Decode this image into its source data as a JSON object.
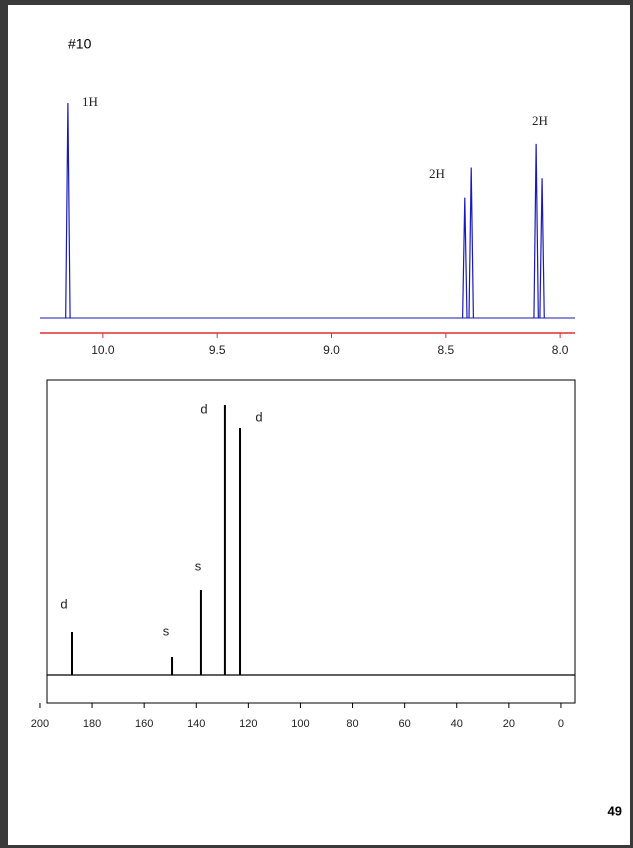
{
  "page": {
    "title": "#10",
    "page_number": "49"
  },
  "chart_data": [
    {
      "type": "spectrum",
      "color": "#1a1ab8",
      "axis_color": "#e03030",
      "x": [
        10.153,
        8.417,
        8.389,
        8.105,
        8.079
      ],
      "values": [
        100,
        56,
        70,
        81,
        65
      ],
      "xlim": [
        10.275,
        7.935
      ],
      "ylim": [
        0,
        100
      ],
      "xticks": [
        {
          "value": 10,
          "label": "10.0"
        },
        {
          "value": 9.5,
          "label": "9.5"
        },
        {
          "value": 9,
          "label": "9.0"
        },
        {
          "value": 8.5,
          "label": "8.5"
        },
        {
          "value": 8,
          "label": "8.0"
        }
      ],
      "annotations": [
        "1H",
        "2H",
        "2H"
      ]
    },
    {
      "type": "sticks",
      "color": "#000000",
      "axis_color": "#000000",
      "x": [
        187.7,
        149.3,
        138.2,
        129,
        123.2
      ],
      "values": [
        43,
        18,
        85,
        270,
        247
      ],
      "xlim": [
        197.3,
        -5.4
      ],
      "ylim": [
        0,
        295
      ],
      "xticks": [
        200,
        180,
        160,
        140,
        120,
        100,
        80,
        60,
        40,
        20,
        0
      ],
      "annotations": [
        "d",
        "s",
        "s",
        "d",
        "d"
      ]
    }
  ]
}
